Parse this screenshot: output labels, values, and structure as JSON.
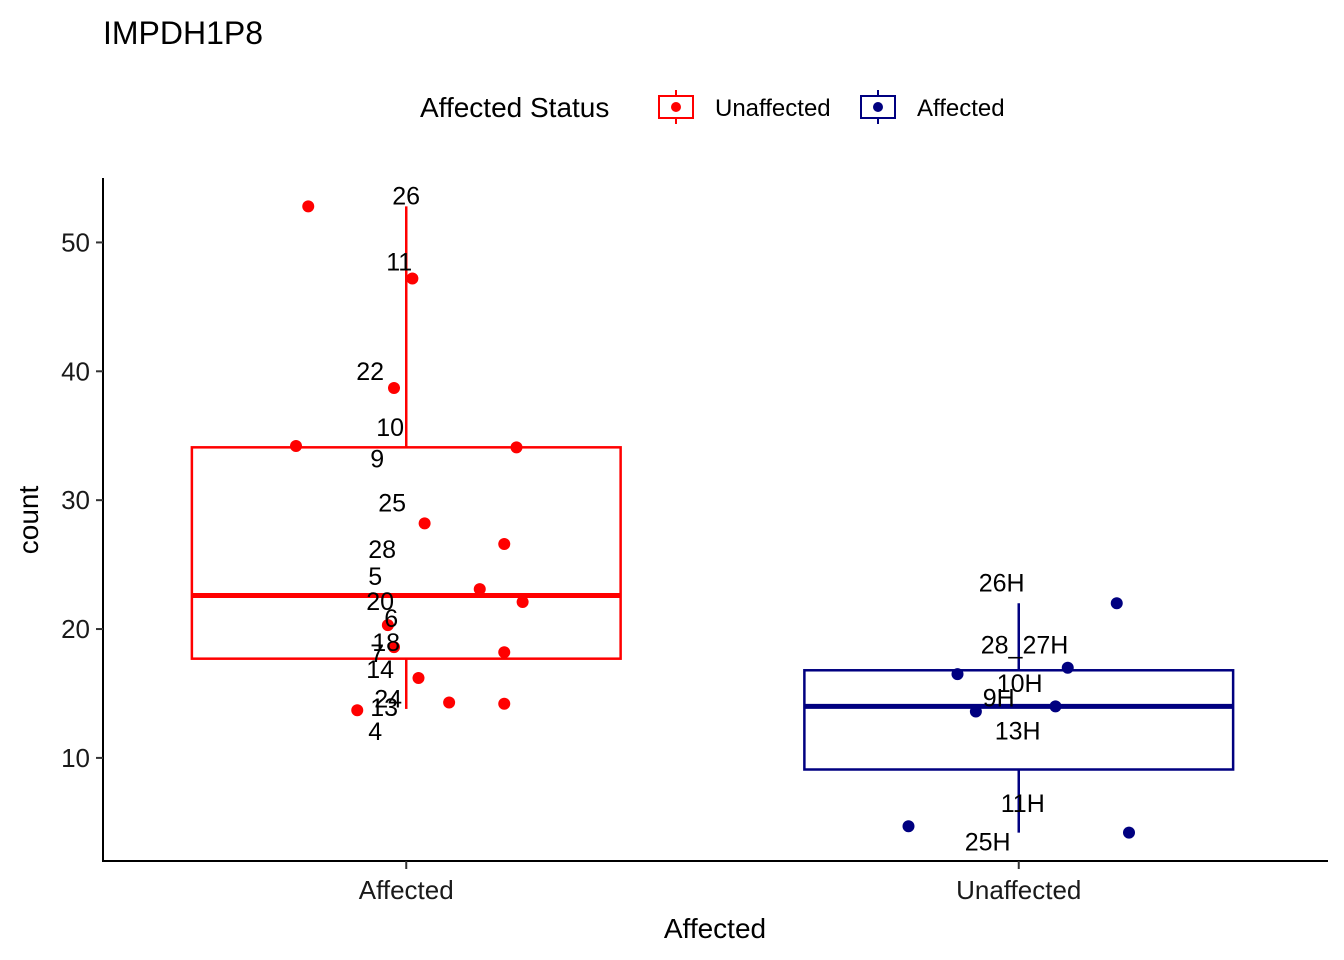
{
  "chart_data": {
    "type": "box",
    "title": "IMPDH1P8",
    "xlabel": "Affected",
    "ylabel": "count",
    "ylim": [
      2,
      55
    ],
    "yticks": [
      10,
      20,
      30,
      40,
      50
    ],
    "categories": [
      "Affected",
      "Unaffected"
    ],
    "legend": {
      "title": "Affected Status",
      "position": "top",
      "entries": [
        {
          "label": "Unaffected",
          "color": "#ff0000"
        },
        {
          "label": "Affected",
          "color": "#000080"
        }
      ]
    },
    "series": [
      {
        "name": "Unaffected",
        "category": "Affected",
        "color": "#ff0000",
        "box": {
          "whisker_low": 13.8,
          "q1": 17.7,
          "median": 22.6,
          "q3": 34.1,
          "whisker_high": 52.8
        },
        "points": [
          {
            "label": "26",
            "x": -0.16,
            "y": 52.8
          },
          {
            "label": "11",
            "x": 0.01,
            "y": 47.2
          },
          {
            "label": "22",
            "x": -0.02,
            "y": 38.7
          },
          {
            "label": "10",
            "x": -0.18,
            "y": 34.2
          },
          {
            "label": "9",
            "x": 0.18,
            "y": 34.1
          },
          {
            "label": "25",
            "x": 0.03,
            "y": 28.2
          },
          {
            "label": "28",
            "x": 0.16,
            "y": 26.6
          },
          {
            "label": "5",
            "x": 0.12,
            "y": 23.1
          },
          {
            "label": "20",
            "x": 0.19,
            "y": 22.1
          },
          {
            "label": "6",
            "x": -0.03,
            "y": 20.3
          },
          {
            "label": "18",
            "x": -0.02,
            "y": 18.6
          },
          {
            "label": "7",
            "x": 0.16,
            "y": 18.2
          },
          {
            "label": "14",
            "x": 0.02,
            "y": 16.2
          },
          {
            "label": "24",
            "x": 0.07,
            "y": 14.3
          },
          {
            "label": "13",
            "x": 0.16,
            "y": 14.2
          },
          {
            "label": "4",
            "x": -0.08,
            "y": 13.7
          }
        ]
      },
      {
        "name": "Affected",
        "category": "Unaffected",
        "color": "#000080",
        "box": {
          "whisker_low": 4.2,
          "q1": 9.1,
          "median": 14.0,
          "q3": 16.8,
          "whisker_high": 22.0
        },
        "points": [
          {
            "label": "26H",
            "x": 0.16,
            "y": 22.0
          },
          {
            "label": "28_27H",
            "x": 0.08,
            "y": 17.0
          },
          {
            "label": "10H",
            "x": -0.1,
            "y": 16.5
          },
          {
            "label": "9H",
            "x": 0.06,
            "y": 14.0
          },
          {
            "label": "13H",
            "x": -0.07,
            "y": 13.6
          },
          {
            "label": "11H",
            "x": -0.18,
            "y": 4.7
          },
          {
            "label": "25H",
            "x": 0.18,
            "y": 4.2
          }
        ]
      }
    ],
    "annotations": {
      "Affected": [
        "26",
        "11",
        "22",
        "10",
        "9",
        "25",
        "28",
        "5",
        "20",
        "6",
        "18",
        "7",
        "14",
        "24",
        "13",
        "4"
      ],
      "Unaffected": [
        "26H",
        "28_27H",
        "10H",
        "9H",
        "13H",
        "11H",
        "25H"
      ]
    }
  }
}
